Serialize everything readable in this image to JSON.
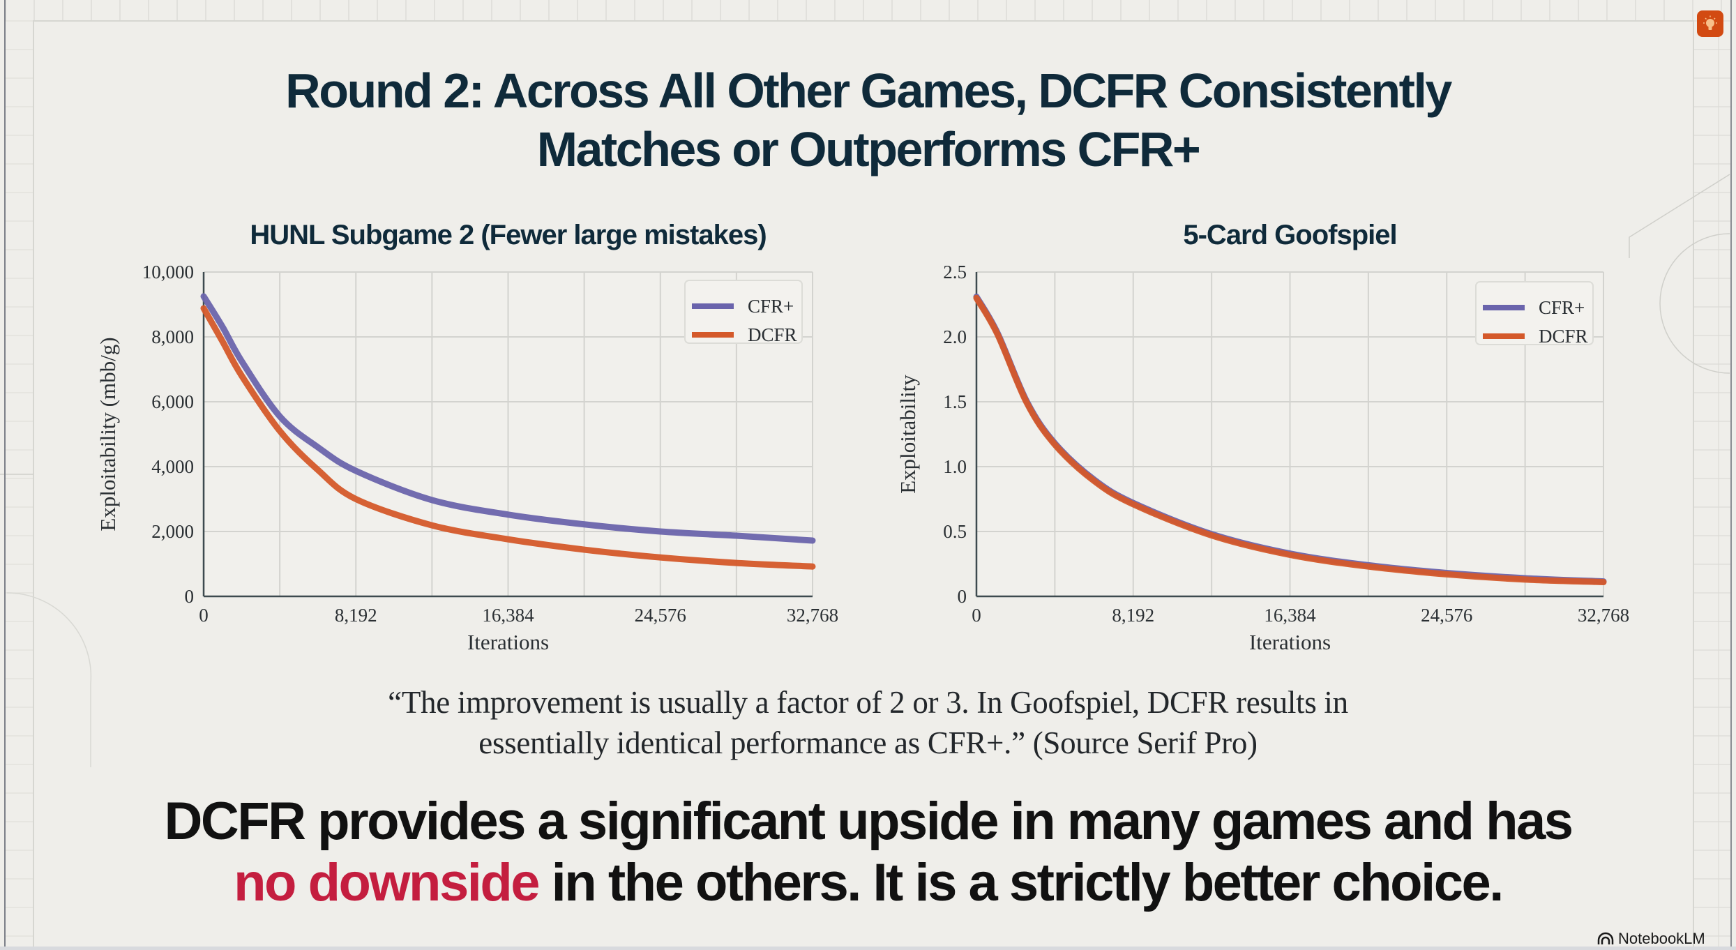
{
  "slide": {
    "title_line1": "Round 2:  Across All Other Games, DCFR Consistently",
    "title_line2": "Matches or Outperforms CFR+",
    "quote_line1": "“The improvement is usually a factor of 2 or 3. In Goofspiel, DCFR results in",
    "quote_line2": "essentially identical performance as CFR+.”  (Source Serif Pro)",
    "conclusion_line1": "DCFR provides a significant upside in many games and has",
    "conclusion_highlight": "no downside",
    "conclusion_line2_rest": " in the others. It is a strictly better choice.",
    "brand_label": "NotebookLM",
    "brand_icon": "notebooklm-logo-icon",
    "corner_icon": "lightbulb-icon",
    "colors": {
      "title": "#0f2a3a",
      "highlight": "#c41e3f",
      "cfr_plus": "#6a64ac",
      "dcfr": "#d4592a",
      "corner_badge": "#d24a12"
    }
  },
  "chart_data": [
    {
      "type": "line",
      "title": "HUNL Subgame 2 (Fewer large mistakes)",
      "xlabel": "Iterations",
      "ylabel": "Exploitability (mbb/g)",
      "xlim": [
        0,
        32768
      ],
      "ylim": [
        0,
        10000
      ],
      "xticks": [
        0,
        8192,
        16384,
        24576,
        32768
      ],
      "xtick_labels": [
        "0",
        "8,192",
        "16,384",
        "24,576",
        "32,768"
      ],
      "yticks": [
        0,
        2000,
        4000,
        6000,
        8000,
        10000
      ],
      "ytick_labels": [
        "0",
        "2,000",
        "4,000",
        "6,000",
        "8,000",
        "10,000"
      ],
      "grid": true,
      "x_grid_step": 4096,
      "legend_position": "top-right",
      "x": [
        0,
        1024,
        2048,
        4096,
        6144,
        8192,
        12288,
        16384,
        20480,
        24576,
        28672,
        32768
      ],
      "series": [
        {
          "name": "CFR+",
          "color": "#6a64ac",
          "values": [
            9250,
            8300,
            7250,
            5550,
            4600,
            3870,
            2970,
            2520,
            2220,
            2000,
            1870,
            1720
          ]
        },
        {
          "name": "DCFR",
          "color": "#d4592a",
          "values": [
            8880,
            7850,
            6800,
            5100,
            3900,
            3000,
            2190,
            1760,
            1440,
            1200,
            1030,
            920
          ]
        }
      ]
    },
    {
      "type": "line",
      "title": "5-Card Goofspiel",
      "xlabel": "Iterations",
      "ylabel": "Exploitability",
      "xlim": [
        0,
        32768
      ],
      "ylim": [
        0,
        2.5
      ],
      "xticks": [
        0,
        8192,
        16384,
        24576,
        32768
      ],
      "xtick_labels": [
        "0",
        "8,192",
        "16,384",
        "24,576",
        "32,768"
      ],
      "yticks": [
        0,
        0.5,
        1.0,
        1.5,
        2.0,
        2.5
      ],
      "ytick_labels": [
        "0",
        "0.5",
        "1.0",
        "1.5",
        "2.0",
        "2.5"
      ],
      "grid": true,
      "x_grid_step": 4096,
      "legend_position": "top-right",
      "x": [
        0,
        1100,
        2636,
        4096,
        6144,
        8192,
        12288,
        16384,
        20480,
        24576,
        28672,
        32768
      ],
      "series": [
        {
          "name": "CFR+",
          "color": "#6a64ac",
          "values": [
            2.31,
            2.03,
            1.5,
            1.18,
            0.9,
            0.72,
            0.48,
            0.33,
            0.24,
            0.18,
            0.14,
            0.115
          ]
        },
        {
          "name": "DCFR",
          "color": "#d4592a",
          "values": [
            2.3,
            2.02,
            1.49,
            1.17,
            0.89,
            0.71,
            0.47,
            0.32,
            0.23,
            0.17,
            0.13,
            0.11
          ]
        }
      ]
    }
  ]
}
